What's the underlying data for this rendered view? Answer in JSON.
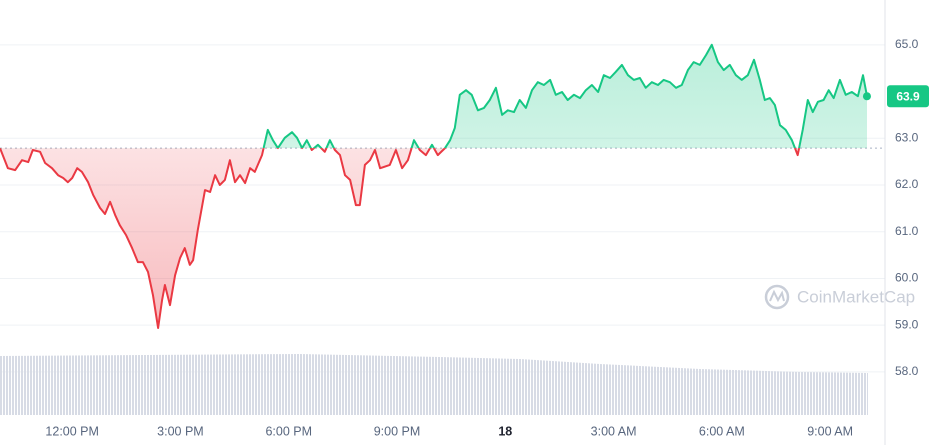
{
  "chart_data": {
    "type": "line",
    "watermark": "CoinMarketCap",
    "x": [
      10.0,
      10.22,
      10.42,
      10.61,
      10.78,
      10.91,
      11.11,
      11.25,
      11.44,
      11.61,
      11.75,
      11.88,
      12.0,
      12.14,
      12.27,
      12.44,
      12.58,
      12.77,
      12.91,
      13.05,
      13.19,
      13.32,
      13.49,
      13.66,
      13.82,
      13.96,
      14.1,
      14.24,
      14.38,
      14.49,
      14.57,
      14.71,
      14.85,
      14.99,
      15.12,
      15.26,
      15.35,
      15.48,
      15.68,
      15.82,
      15.96,
      16.09,
      16.23,
      16.37,
      16.51,
      16.65,
      16.79,
      16.93,
      17.06,
      17.26,
      17.42,
      17.56,
      17.7,
      17.89,
      18.09,
      18.23,
      18.37,
      18.5,
      18.64,
      18.81,
      19.0,
      19.14,
      19.28,
      19.42,
      19.56,
      19.7,
      19.86,
      19.97,
      20.11,
      20.25,
      20.39,
      20.53,
      20.8,
      20.97,
      21.14,
      21.3,
      21.47,
      21.63,
      21.8,
      21.97,
      22.13,
      22.33,
      22.47,
      22.6,
      22.74,
      22.91,
      23.07,
      23.24,
      23.41,
      23.57,
      23.74,
      23.91,
      24.07,
      24.24,
      24.4,
      24.57,
      24.74,
      24.9,
      25.07,
      25.24,
      25.4,
      25.57,
      25.73,
      25.9,
      26.07,
      26.23,
      26.4,
      26.57,
      26.73,
      26.9,
      27.06,
      27.23,
      27.4,
      27.56,
      27.73,
      27.89,
      28.06,
      28.23,
      28.39,
      28.56,
      28.73,
      28.89,
      29.06,
      29.22,
      29.39,
      29.56,
      29.72,
      29.89,
      30.05,
      30.22,
      30.39,
      30.55,
      30.72,
      30.89,
      31.05,
      31.19,
      31.33,
      31.47,
      31.61,
      31.77,
      31.94,
      32.1,
      32.24,
      32.38,
      32.52,
      32.66,
      32.82,
      32.96,
      33.1,
      33.27,
      33.43,
      33.6,
      33.77,
      33.91,
      34.02
    ],
    "values": [
      62.79,
      62.36,
      62.32,
      62.53,
      62.49,
      62.75,
      62.71,
      62.47,
      62.36,
      62.21,
      62.15,
      62.06,
      62.15,
      62.36,
      62.28,
      62.06,
      61.79,
      61.51,
      61.38,
      61.64,
      61.36,
      61.14,
      60.93,
      60.65,
      60.35,
      60.35,
      60.14,
      59.64,
      58.94,
      59.54,
      59.86,
      59.43,
      60.07,
      60.44,
      60.65,
      60.29,
      60.39,
      61.04,
      61.89,
      61.85,
      62.21,
      62.0,
      62.11,
      62.53,
      62.06,
      62.21,
      62.04,
      62.36,
      62.28,
      62.64,
      63.18,
      62.96,
      62.79,
      63.01,
      63.13,
      63.01,
      62.79,
      62.96,
      62.75,
      62.86,
      62.71,
      62.96,
      62.75,
      62.64,
      62.21,
      62.11,
      61.57,
      61.57,
      62.43,
      62.53,
      62.75,
      62.36,
      62.43,
      62.75,
      62.36,
      62.53,
      62.96,
      62.75,
      62.64,
      62.86,
      62.64,
      62.79,
      62.96,
      63.22,
      63.93,
      64.03,
      63.93,
      63.6,
      63.65,
      63.82,
      64.08,
      63.5,
      63.6,
      63.56,
      63.82,
      63.65,
      64.03,
      64.2,
      64.14,
      64.25,
      63.93,
      63.99,
      63.82,
      63.93,
      63.86,
      64.03,
      64.14,
      63.99,
      64.35,
      64.29,
      64.42,
      64.57,
      64.35,
      64.25,
      64.29,
      64.08,
      64.2,
      64.14,
      64.25,
      64.2,
      64.08,
      64.14,
      64.46,
      64.63,
      64.57,
      64.78,
      65.0,
      64.63,
      64.46,
      64.57,
      64.35,
      64.25,
      64.35,
      64.68,
      64.25,
      63.82,
      63.86,
      63.71,
      63.28,
      63.18,
      62.96,
      62.64,
      63.18,
      63.82,
      63.56,
      63.78,
      63.82,
      64.03,
      63.86,
      64.25,
      63.93,
      63.99,
      63.9,
      64.35,
      63.9
    ],
    "baseline": 62.79,
    "colors": {
      "up": "#16c784",
      "down": "#ea3943"
    },
    "xlim": [
      10,
      34.52
    ],
    "xticks": [
      {
        "value": 12,
        "label": "12:00 PM"
      },
      {
        "value": 15,
        "label": "3:00 PM"
      },
      {
        "value": 18,
        "label": "6:00 PM"
      },
      {
        "value": 21,
        "label": "9:00 PM"
      },
      {
        "value": 24,
        "label": "18"
      },
      {
        "value": 27,
        "label": "3:00 AM"
      },
      {
        "value": 30,
        "label": "6:00 AM"
      },
      {
        "value": 33,
        "label": "9:00 AM"
      }
    ],
    "ylim": [
      56.97,
      65.96
    ],
    "yticks": [
      {
        "value": 58,
        "label": "58.0"
      },
      {
        "value": 59,
        "label": "59.0"
      },
      {
        "value": 60,
        "label": "60.0"
      },
      {
        "value": 61,
        "label": "61.0"
      },
      {
        "value": 62,
        "label": "62.0"
      },
      {
        "value": 63,
        "label": "63.0"
      },
      {
        "value": 65,
        "label": "65.0"
      }
    ],
    "grid": true
  }
}
